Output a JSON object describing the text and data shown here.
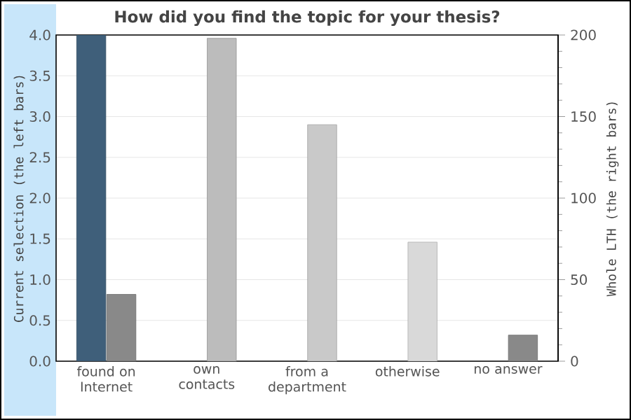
{
  "chart_data": {
    "type": "bar",
    "title": "How did you find the topic for your thesis?",
    "categories": [
      "found on Internet",
      "own contacts",
      "from a department",
      "otherwise",
      "no answer"
    ],
    "ylabel": "Current selection (the left bars)",
    "y2label": "Whole LTH (the right bars)",
    "ylim": [
      0,
      4
    ],
    "yticks": [
      {
        "value": 0,
        "label": "0.0"
      },
      0.5,
      {
        "value": 1,
        "label": "1.0"
      },
      1.5,
      {
        "value": 2,
        "label": "2.0"
      },
      2.5,
      {
        "value": 3,
        "label": "3.0"
      },
      3.5,
      {
        "value": 4,
        "label": "4.0"
      }
    ],
    "y2lim": [
      0,
      200
    ],
    "y2ticks": [
      0,
      {
        "value": 10,
        "label": null
      },
      {
        "value": 20,
        "label": null
      },
      {
        "value": 30,
        "label": null
      },
      {
        "value": 40,
        "label": null
      },
      50,
      {
        "value": 60,
        "label": null
      },
      {
        "value": 70,
        "label": null
      },
      {
        "value": 80,
        "label": null
      },
      {
        "value": 90,
        "label": null
      },
      100,
      {
        "value": 110,
        "label": null
      },
      {
        "value": 120,
        "label": null
      },
      {
        "value": 130,
        "label": null
      },
      {
        "value": 140,
        "label": null
      },
      150,
      {
        "value": 160,
        "label": null
      },
      {
        "value": 170,
        "label": null
      },
      {
        "value": 180,
        "label": null
      },
      {
        "value": 190,
        "label": null
      },
      200
    ],
    "grid": "y",
    "series": [
      {
        "axis": "y",
        "colors": [
          "#3f5f7a",
          "#3f5f7a",
          "#3f5f7a",
          "#3f5f7a",
          "#3f5f7a"
        ],
        "values": [
          4,
          null,
          null,
          null,
          null
        ]
      },
      {
        "axis": "y2",
        "colors": [
          "#898989",
          "#bcbcbc",
          "#c9c9c9",
          "#d9d9d9",
          "#898989"
        ],
        "values": [
          41,
          198,
          145,
          73,
          16
        ]
      }
    ]
  }
}
